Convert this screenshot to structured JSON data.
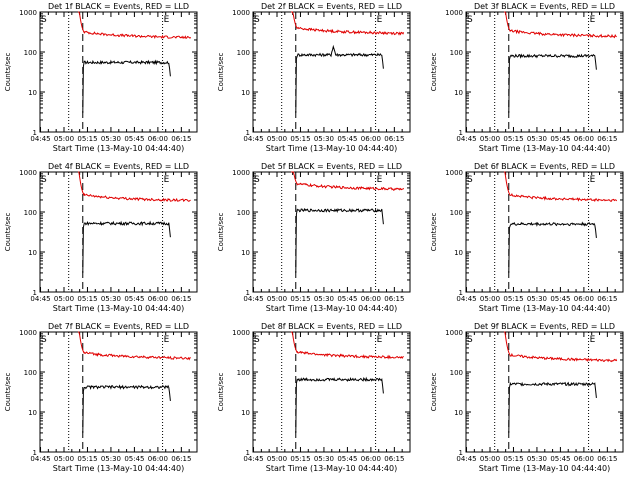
{
  "chart_data": [
    {
      "type": "line",
      "title": "Det 1f BLACK = Events, RED = LLD",
      "xlabel": "Start Time (13-May-10 04:44:40)",
      "ylabel": "Counts/sec",
      "x_tick_labels": [
        "04:45",
        "05:00",
        "05:15",
        "05:30",
        "05:45",
        "06:00",
        "06:15"
      ],
      "y_tick_labels": [
        "1",
        "10",
        "100",
        "1000"
      ],
      "xlim": [
        "04:44:40",
        "06:25"
      ],
      "ylim": [
        1,
        1000
      ],
      "yscale": "log",
      "markers": [
        {
          "label": "S",
          "time": "04:44:40",
          "style": "none"
        },
        {
          "label": "",
          "time": "05:03",
          "style": "dotted"
        },
        {
          "label": "",
          "time": "05:12",
          "style": "dashed"
        },
        {
          "label": "E",
          "time": "06:03",
          "style": "dotted"
        }
      ],
      "series": [
        {
          "name": "Events",
          "color": "#000000",
          "start": "05:12",
          "end": "06:08",
          "level": 55,
          "spike": null
        },
        {
          "name": "LLD",
          "color": "#e00000",
          "start": "05:11",
          "end": "06:21",
          "level": 260,
          "spike": null
        }
      ]
    },
    {
      "type": "line",
      "title": "Det 2f BLACK = Events, RED = LLD",
      "xlabel": "Start Time (13-May-10 04:44:40)",
      "ylabel": "Counts/sec",
      "x_tick_labels": [
        "04:45",
        "05:00",
        "05:15",
        "05:30",
        "05:45",
        "06:00",
        "06:15"
      ],
      "y_tick_labels": [
        "1",
        "10",
        "100",
        "1000"
      ],
      "xlim": [
        "04:44:40",
        "06:25"
      ],
      "ylim": [
        1,
        1000
      ],
      "yscale": "log",
      "markers": [
        {
          "label": "S",
          "time": "04:44:40",
          "style": "none"
        },
        {
          "label": "",
          "time": "05:03",
          "style": "dotted"
        },
        {
          "label": "",
          "time": "05:12",
          "style": "dashed"
        },
        {
          "label": "E",
          "time": "06:03",
          "style": "dotted"
        }
      ],
      "series": [
        {
          "name": "Events",
          "color": "#000000",
          "start": "05:12",
          "end": "06:08",
          "level": 85,
          "spike": "05:36"
        },
        {
          "name": "LLD",
          "color": "#e00000",
          "start": "05:11",
          "end": "06:21",
          "level": 330,
          "spike": null
        }
      ]
    },
    {
      "type": "line",
      "title": "Det 3f BLACK = Events, RED = LLD",
      "xlabel": "Start Time (13-May-10 04:44:40)",
      "ylabel": "Counts/sec",
      "x_tick_labels": [
        "04:45",
        "05:00",
        "05:15",
        "05:30",
        "05:45",
        "06:00",
        "06:15"
      ],
      "y_tick_labels": [
        "1",
        "10",
        "100",
        "1000"
      ],
      "xlim": [
        "04:44:40",
        "06:25"
      ],
      "ylim": [
        1,
        1000
      ],
      "yscale": "log",
      "markers": [
        {
          "label": "S",
          "time": "04:44:40",
          "style": "none"
        },
        {
          "label": "",
          "time": "05:03",
          "style": "dotted"
        },
        {
          "label": "",
          "time": "05:12",
          "style": "dashed"
        },
        {
          "label": "E",
          "time": "06:03",
          "style": "dotted"
        }
      ],
      "series": [
        {
          "name": "Events",
          "color": "#000000",
          "start": "05:12",
          "end": "06:08",
          "level": 80,
          "spike": null
        },
        {
          "name": "LLD",
          "color": "#e00000",
          "start": "05:11",
          "end": "06:21",
          "level": 280,
          "spike": null
        }
      ]
    },
    {
      "type": "line",
      "title": "Det 4f BLACK = Events, RED = LLD",
      "xlabel": "Start Time (13-May-10 04:44:40)",
      "ylabel": "Counts/sec",
      "x_tick_labels": [
        "04:45",
        "05:00",
        "05:15",
        "05:30",
        "05:45",
        "06:00",
        "06:15"
      ],
      "y_tick_labels": [
        "1",
        "10",
        "100",
        "1000"
      ],
      "xlim": [
        "04:44:40",
        "06:25"
      ],
      "ylim": [
        1,
        1000
      ],
      "yscale": "log",
      "markers": [
        {
          "label": "S",
          "time": "04:44:40",
          "style": "none"
        },
        {
          "label": "",
          "time": "05:03",
          "style": "dotted"
        },
        {
          "label": "",
          "time": "05:12",
          "style": "dashed"
        },
        {
          "label": "E",
          "time": "06:03",
          "style": "dotted"
        }
      ],
      "series": [
        {
          "name": "Events",
          "color": "#000000",
          "start": "05:12",
          "end": "06:08",
          "level": 52,
          "spike": null
        },
        {
          "name": "LLD",
          "color": "#e00000",
          "start": "05:11",
          "end": "06:21",
          "level": 220,
          "spike": null
        }
      ]
    },
    {
      "type": "line",
      "title": "Det 5f BLACK = Events, RED = LLD",
      "xlabel": "Start Time (13-May-10 04:44:40)",
      "ylabel": "Counts/sec",
      "x_tick_labels": [
        "04:45",
        "05:00",
        "05:15",
        "05:30",
        "05:45",
        "06:00",
        "06:15"
      ],
      "y_tick_labels": [
        "1",
        "10",
        "100",
        "1000"
      ],
      "xlim": [
        "04:44:40",
        "06:25"
      ],
      "ylim": [
        1,
        1000
      ],
      "yscale": "log",
      "markers": [
        {
          "label": "S",
          "time": "04:44:40",
          "style": "none"
        },
        {
          "label": "",
          "time": "05:03",
          "style": "dotted"
        },
        {
          "label": "",
          "time": "05:12",
          "style": "dashed"
        },
        {
          "label": "E",
          "time": "06:03",
          "style": "dotted"
        }
      ],
      "series": [
        {
          "name": "Events",
          "color": "#000000",
          "start": "05:12",
          "end": "06:08",
          "level": 110,
          "spike": null
        },
        {
          "name": "LLD",
          "color": "#e00000",
          "start": "05:11",
          "end": "06:21",
          "level": 420,
          "spike": null
        }
      ]
    },
    {
      "type": "line",
      "title": "Det 6f BLACK = Events, RED = LLD",
      "xlabel": "Start Time (13-May-10 04:44:40)",
      "ylabel": "Counts/sec",
      "x_tick_labels": [
        "04:45",
        "05:00",
        "05:15",
        "05:30",
        "05:45",
        "06:00",
        "06:15"
      ],
      "y_tick_labels": [
        "1",
        "10",
        "100",
        "1000"
      ],
      "xlim": [
        "04:44:40",
        "06:25"
      ],
      "ylim": [
        1,
        1000
      ],
      "yscale": "log",
      "markers": [
        {
          "label": "S",
          "time": "04:44:40",
          "style": "none"
        },
        {
          "label": "",
          "time": "05:03",
          "style": "dotted"
        },
        {
          "label": "",
          "time": "05:12",
          "style": "dashed"
        },
        {
          "label": "E",
          "time": "06:03",
          "style": "dotted"
        }
      ],
      "series": [
        {
          "name": "Events",
          "color": "#000000",
          "start": "05:12",
          "end": "06:08",
          "level": 50,
          "spike": null
        },
        {
          "name": "LLD",
          "color": "#e00000",
          "start": "05:11",
          "end": "06:21",
          "level": 220,
          "spike": null
        }
      ]
    },
    {
      "type": "line",
      "title": "Det 7f BLACK = Events, RED = LLD",
      "xlabel": "Start Time (13-May-10 04:44:40)",
      "ylabel": "Counts/sec",
      "x_tick_labels": [
        "04:45",
        "05:00",
        "05:15",
        "05:30",
        "05:45",
        "06:00",
        "06:15"
      ],
      "y_tick_labels": [
        "1",
        "10",
        "100",
        "1000"
      ],
      "xlim": [
        "04:44:40",
        "06:25"
      ],
      "ylim": [
        1,
        1000
      ],
      "yscale": "log",
      "markers": [
        {
          "label": "S",
          "time": "04:44:40",
          "style": "none"
        },
        {
          "label": "",
          "time": "05:03",
          "style": "dotted"
        },
        {
          "label": "",
          "time": "05:12",
          "style": "dashed"
        },
        {
          "label": "E",
          "time": "06:03",
          "style": "dotted"
        }
      ],
      "series": [
        {
          "name": "Events",
          "color": "#000000",
          "start": "05:12",
          "end": "06:08",
          "level": 42,
          "spike": null
        },
        {
          "name": "LLD",
          "color": "#e00000",
          "start": "05:11",
          "end": "06:21",
          "level": 250,
          "spike": null
        }
      ]
    },
    {
      "type": "line",
      "title": "Det 8f BLACK = Events, RED = LLD",
      "xlabel": "Start Time (13-May-10 04:44:40)",
      "ylabel": "Counts/sec",
      "x_tick_labels": [
        "04:45",
        "05:00",
        "05:15",
        "05:30",
        "05:45",
        "06:00",
        "06:15"
      ],
      "y_tick_labels": [
        "1",
        "10",
        "100",
        "1000"
      ],
      "xlim": [
        "04:44:40",
        "06:25"
      ],
      "ylim": [
        1,
        1000
      ],
      "yscale": "log",
      "markers": [
        {
          "label": "S",
          "time": "04:44:40",
          "style": "none"
        },
        {
          "label": "",
          "time": "05:03",
          "style": "dotted"
        },
        {
          "label": "",
          "time": "05:12",
          "style": "dashed"
        },
        {
          "label": "E",
          "time": "06:03",
          "style": "dotted"
        }
      ],
      "series": [
        {
          "name": "Events",
          "color": "#000000",
          "start": "05:12",
          "end": "06:08",
          "level": 65,
          "spike": null
        },
        {
          "name": "LLD",
          "color": "#e00000",
          "start": "05:11",
          "end": "06:21",
          "level": 260,
          "spike": null
        }
      ]
    },
    {
      "type": "line",
      "title": "Det 9f BLACK = Events, RED = LLD",
      "xlabel": "Start Time (13-May-10 04:44:40)",
      "ylabel": "Counts/sec",
      "x_tick_labels": [
        "04:45",
        "05:00",
        "05:15",
        "05:30",
        "05:45",
        "06:00",
        "06:15"
      ],
      "y_tick_labels": [
        "1",
        "10",
        "100",
        "1000"
      ],
      "xlim": [
        "04:44:40",
        "06:25"
      ],
      "ylim": [
        1,
        1000
      ],
      "yscale": "log",
      "markers": [
        {
          "label": "S",
          "time": "04:44:40",
          "style": "none"
        },
        {
          "label": "",
          "time": "05:03",
          "style": "dotted"
        },
        {
          "label": "",
          "time": "05:12",
          "style": "dashed"
        },
        {
          "label": "E",
          "time": "06:03",
          "style": "dotted"
        }
      ],
      "series": [
        {
          "name": "Events",
          "color": "#000000",
          "start": "05:12",
          "end": "06:08",
          "level": 50,
          "spike": null
        },
        {
          "name": "LLD",
          "color": "#e00000",
          "start": "05:11",
          "end": "06:21",
          "level": 220,
          "spike": null
        }
      ]
    }
  ]
}
